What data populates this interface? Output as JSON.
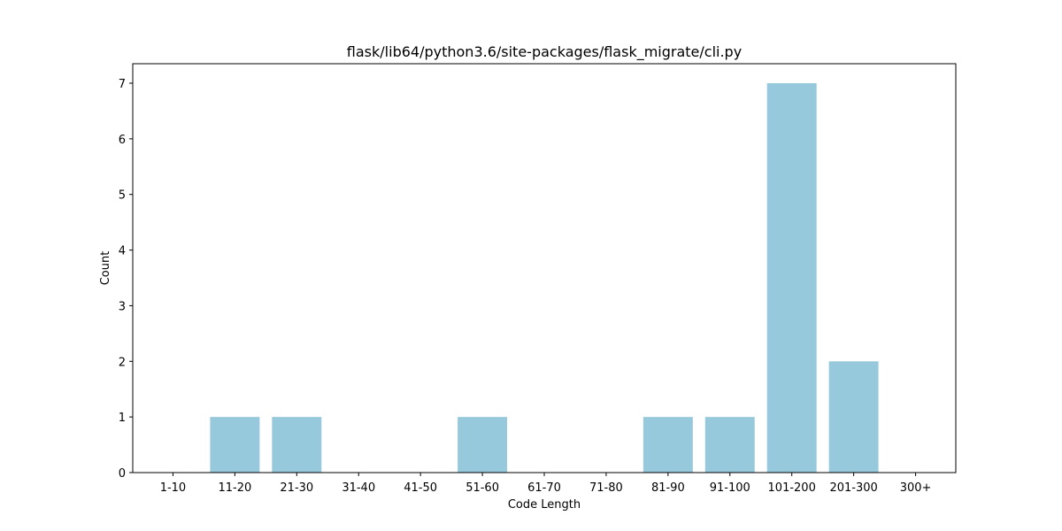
{
  "chart_data": {
    "type": "bar",
    "title": "flask/lib64/python3.6/site-packages/flask_migrate/cli.py",
    "xlabel": "Code Length",
    "ylabel": "Count",
    "categories": [
      "1-10",
      "11-20",
      "21-30",
      "31-40",
      "41-50",
      "51-60",
      "61-70",
      "71-80",
      "81-90",
      "91-100",
      "101-200",
      "201-300",
      "300+"
    ],
    "values": [
      0,
      1,
      1,
      0,
      0,
      1,
      0,
      0,
      1,
      1,
      7,
      2,
      0
    ],
    "ylim": [
      0,
      7.35
    ],
    "yticks": [
      0,
      1,
      2,
      3,
      4,
      5,
      6,
      7
    ],
    "grid": false,
    "legend": "none",
    "bar_color": "#96c9dc"
  }
}
